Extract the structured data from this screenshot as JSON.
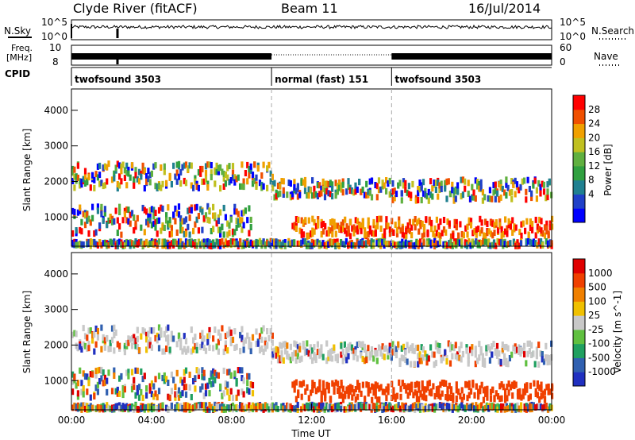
{
  "header": {
    "station": "Clyde River (fitACF)",
    "beam": "Beam 11",
    "date": "16/Jul/2014"
  },
  "nsky_panel": {
    "left_label": "N.Sky",
    "right_label": "N.Search",
    "left_ticks": [
      "10^5",
      "10^0"
    ],
    "right_ticks": [
      "10^5",
      "10^0"
    ]
  },
  "freq_panel": {
    "left_label_top": "Freq.",
    "left_label_bottom": "[MHz]",
    "left_ticks": [
      "10",
      "8"
    ],
    "right_label": "Nave",
    "right_ticks": [
      "60",
      "0"
    ]
  },
  "cpid": {
    "label": "CPID",
    "segments": [
      {
        "name": "twofsound 3503",
        "start_hour": 0,
        "end_hour": 10
      },
      {
        "name": "normal (fast) 151",
        "start_hour": 10,
        "end_hour": 16
      },
      {
        "name": "twofsound 3503",
        "start_hour": 16,
        "end_hour": 24
      }
    ]
  },
  "chart_data": [
    {
      "type": "heatmap",
      "title": "Power",
      "ylabel": "Slant Range [km]",
      "xlim": [
        0,
        24
      ],
      "ylim": [
        180,
        4600
      ],
      "yticks": [
        "1000",
        "2000",
        "3000",
        "4000"
      ],
      "colorbar": {
        "label": "Power [dB]",
        "ticks": [
          "28",
          "24",
          "20",
          "16",
          "12",
          "8",
          "4"
        ],
        "colors": [
          "#0000ff",
          "#2040c8",
          "#208090",
          "#30a040",
          "#60b040",
          "#c0c020",
          "#f0a000",
          "#f05000",
          "#ff0000"
        ]
      }
    },
    {
      "type": "heatmap",
      "title": "Velocity",
      "ylabel": "Slant Range [km]",
      "xlim": [
        0,
        24
      ],
      "ylim": [
        180,
        4600
      ],
      "yticks": [
        "1000",
        "2000",
        "3000",
        "4000"
      ],
      "xlabel": "Time UT",
      "xticks": [
        "00:00",
        "04:00",
        "08:00",
        "12:00",
        "16:00",
        "20:00",
        "00:00"
      ],
      "colorbar": {
        "label": "Velocity [m s^-1]",
        "ticks": [
          "1000",
          "500",
          "100",
          "25",
          "-25",
          "-100",
          "-500",
          "-1000"
        ],
        "colors": [
          "#2030c0",
          "#3060b0",
          "#20a060",
          "#60c040",
          "#c8c8c8",
          "#f0c000",
          "#f08000",
          "#f04000",
          "#e00000"
        ]
      }
    }
  ]
}
